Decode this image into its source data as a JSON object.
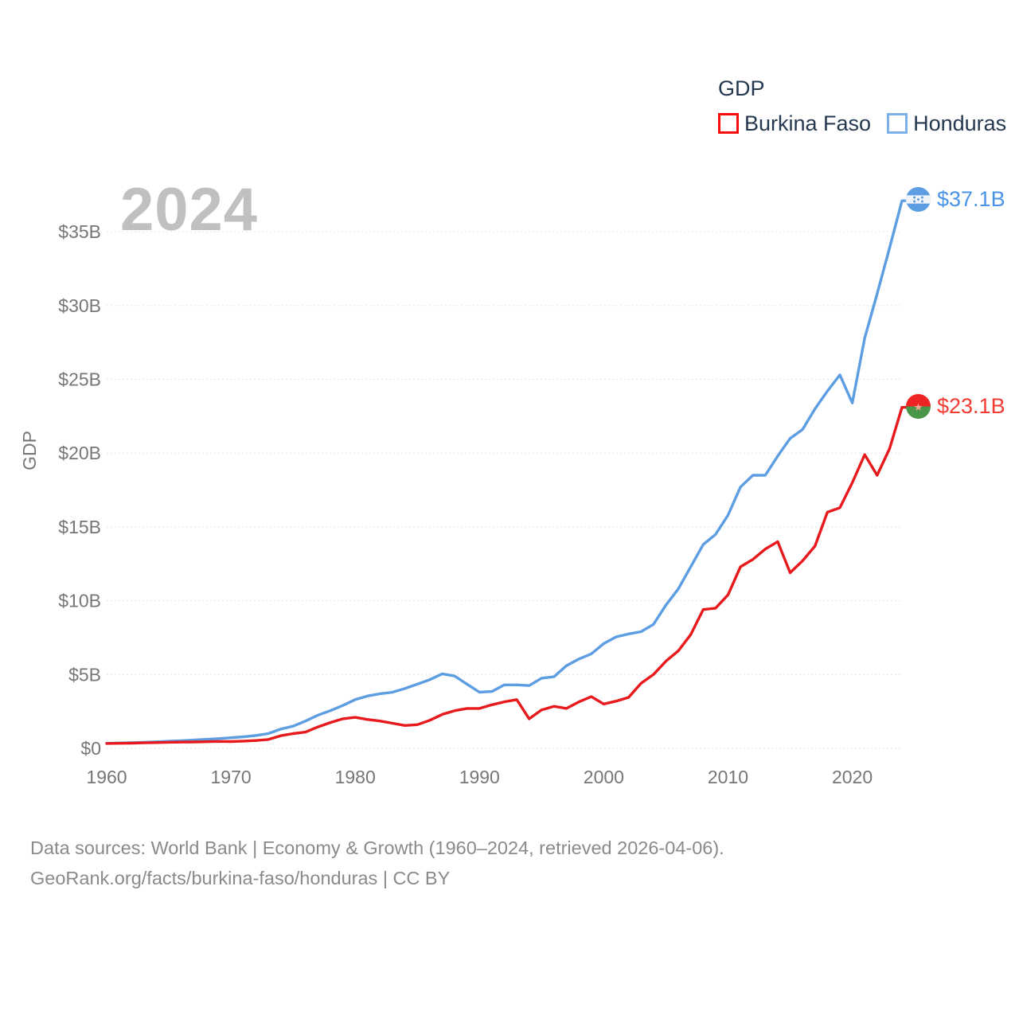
{
  "legend": {
    "title": "GDP",
    "items": [
      {
        "label": "Burkina Faso",
        "swatch_color": "#fa0a0a"
      },
      {
        "label": "Honduras",
        "swatch_color": "#7cb0e8"
      }
    ]
  },
  "watermark_year": "2024",
  "end_labels": [
    {
      "series": "Honduras",
      "text": "$37.1B",
      "color": "#4a94e8",
      "flag": "honduras-flag"
    },
    {
      "series": "Burkina Faso",
      "text": "$23.1B",
      "color": "#f33b31",
      "flag": "burkina-faso-flag"
    }
  ],
  "footer": {
    "line1": "Data sources: World Bank | Economy & Growth (1960–2024, retrieved 2026-04-06).",
    "line2": "GeoRank.org/facts/burkina-faso/honduras | CC BY"
  },
  "chart_data": {
    "type": "line",
    "title": "GDP",
    "ylabel": "GDP",
    "units": "billion USD, current",
    "x_start": 1960,
    "x_end": 2024,
    "x": [
      1960,
      1961,
      1962,
      1963,
      1964,
      1965,
      1966,
      1967,
      1968,
      1969,
      1970,
      1971,
      1972,
      1973,
      1974,
      1975,
      1976,
      1977,
      1978,
      1979,
      1980,
      1981,
      1982,
      1983,
      1984,
      1985,
      1986,
      1987,
      1988,
      1989,
      1990,
      1991,
      1992,
      1993,
      1994,
      1995,
      1996,
      1997,
      1998,
      1999,
      2000,
      2001,
      2002,
      2003,
      2004,
      2005,
      2006,
      2007,
      2008,
      2009,
      2010,
      2011,
      2012,
      2013,
      2014,
      2015,
      2016,
      2017,
      2018,
      2019,
      2020,
      2021,
      2022,
      2023,
      2024
    ],
    "series": [
      {
        "name": "Honduras",
        "color": "#5d9de2",
        "values": [
          0.34,
          0.36,
          0.38,
          0.41,
          0.44,
          0.48,
          0.52,
          0.56,
          0.61,
          0.66,
          0.72,
          0.78,
          0.87,
          1.0,
          1.3,
          1.5,
          1.85,
          2.25,
          2.55,
          2.9,
          3.3,
          3.55,
          3.7,
          3.8,
          4.05,
          4.35,
          4.65,
          5.05,
          4.9,
          4.35,
          3.8,
          3.85,
          4.3,
          4.3,
          4.25,
          4.75,
          4.85,
          5.6,
          6.05,
          6.4,
          7.1,
          7.55,
          7.75,
          7.9,
          8.4,
          9.7,
          10.8,
          12.3,
          13.8,
          14.5,
          15.8,
          17.7,
          18.5,
          18.5,
          19.8,
          21.0,
          21.6,
          23.0,
          24.2,
          25.3,
          23.4,
          27.8,
          30.8,
          33.9,
          37.1
        ]
      },
      {
        "name": "Burkina Faso",
        "color": "#e8191c",
        "values": [
          0.33,
          0.34,
          0.35,
          0.37,
          0.39,
          0.41,
          0.42,
          0.43,
          0.45,
          0.47,
          0.46,
          0.49,
          0.53,
          0.6,
          0.85,
          1.0,
          1.1,
          1.45,
          1.75,
          2.0,
          2.1,
          1.95,
          1.85,
          1.7,
          1.55,
          1.6,
          1.9,
          2.3,
          2.55,
          2.7,
          2.7,
          2.95,
          3.15,
          3.3,
          2.0,
          2.6,
          2.85,
          2.7,
          3.15,
          3.5,
          3.0,
          3.2,
          3.45,
          4.4,
          5.0,
          5.9,
          6.6,
          7.7,
          9.4,
          9.5,
          10.4,
          12.3,
          12.8,
          13.5,
          14.0,
          11.9,
          12.7,
          13.7,
          16.0,
          16.3,
          18.0,
          19.9,
          18.5,
          20.3,
          23.1
        ]
      }
    ],
    "x_ticks": [
      1960,
      1970,
      1980,
      1990,
      2000,
      2010,
      2020
    ],
    "y_ticks": [
      {
        "value": 0,
        "label": "$0"
      },
      {
        "value": 5,
        "label": "$5B"
      },
      {
        "value": 10,
        "label": "$10B"
      },
      {
        "value": 15,
        "label": "$15B"
      },
      {
        "value": 20,
        "label": "$20B"
      },
      {
        "value": 25,
        "label": "$25B"
      },
      {
        "value": 30,
        "label": "$30B"
      },
      {
        "value": 35,
        "label": "$35B"
      }
    ],
    "ylim": [
      0,
      38.6
    ],
    "xlim": [
      1960,
      2024
    ],
    "grid": "horizontal",
    "legend_position": "top-right"
  }
}
